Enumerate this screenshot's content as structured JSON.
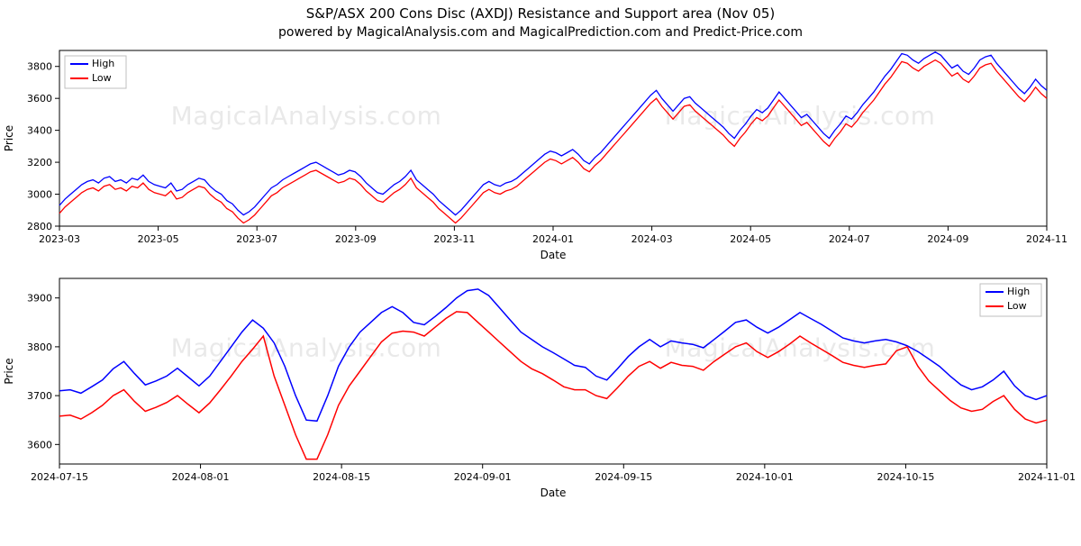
{
  "title": "S&P/ASX 200 Cons Disc (AXDJ) Resistance and Support area (Nov 05)",
  "subtitle": "powered by MagicalAnalysis.com and MagicalPrediction.com and Predict-Price.com",
  "watermark": "MagicalAnalysis.com",
  "chart1": {
    "type": "line",
    "xlabel": "Date",
    "ylabel": "Price",
    "ylim": [
      2800,
      3900
    ],
    "ytick_step": 200,
    "yticks": [
      2800,
      3000,
      3200,
      3400,
      3600,
      3800
    ],
    "xticks": [
      "2023-03",
      "2023-05",
      "2023-07",
      "2023-09",
      "2023-11",
      "2024-01",
      "2024-03",
      "2024-05",
      "2024-07",
      "2024-09",
      "2024-11"
    ],
    "legend_position": "upper-left",
    "legend": [
      {
        "label": "High",
        "color": "#0000ff"
      },
      {
        "label": "Low",
        "color": "#ff0000"
      }
    ],
    "line_width": 1.3,
    "background_color": "#ffffff",
    "border_color": "#000000",
    "grid": false,
    "series_high": [
      2930,
      2970,
      3000,
      3030,
      3060,
      3080,
      3090,
      3070,
      3100,
      3110,
      3080,
      3090,
      3070,
      3100,
      3090,
      3120,
      3080,
      3060,
      3050,
      3040,
      3070,
      3020,
      3030,
      3060,
      3080,
      3100,
      3090,
      3050,
      3020,
      3000,
      2960,
      2940,
      2900,
      2870,
      2890,
      2920,
      2960,
      3000,
      3040,
      3060,
      3090,
      3110,
      3130,
      3150,
      3170,
      3190,
      3200,
      3180,
      3160,
      3140,
      3120,
      3130,
      3150,
      3140,
      3110,
      3070,
      3040,
      3010,
      3000,
      3030,
      3060,
      3080,
      3110,
      3150,
      3090,
      3060,
      3030,
      3000,
      2960,
      2930,
      2900,
      2870,
      2900,
      2940,
      2980,
      3020,
      3060,
      3080,
      3060,
      3050,
      3070,
      3080,
      3100,
      3130,
      3160,
      3190,
      3220,
      3250,
      3270,
      3260,
      3240,
      3260,
      3280,
      3250,
      3210,
      3190,
      3230,
      3260,
      3300,
      3340,
      3380,
      3420,
      3460,
      3500,
      3540,
      3580,
      3620,
      3650,
      3600,
      3560,
      3520,
      3560,
      3600,
      3610,
      3570,
      3540,
      3510,
      3480,
      3450,
      3420,
      3380,
      3350,
      3400,
      3440,
      3490,
      3530,
      3510,
      3540,
      3590,
      3640,
      3600,
      3560,
      3520,
      3480,
      3500,
      3460,
      3420,
      3380,
      3350,
      3400,
      3440,
      3490,
      3470,
      3510,
      3560,
      3600,
      3640,
      3690,
      3740,
      3780,
      3830,
      3880,
      3870,
      3840,
      3820,
      3850,
      3870,
      3890,
      3870,
      3830,
      3790,
      3810,
      3770,
      3750,
      3790,
      3840,
      3860,
      3870,
      3820,
      3780,
      3740,
      3700,
      3660,
      3630,
      3670,
      3720,
      3680,
      3650
    ],
    "series_low": [
      2880,
      2920,
      2950,
      2980,
      3010,
      3030,
      3040,
      3020,
      3050,
      3060,
      3030,
      3040,
      3020,
      3050,
      3040,
      3070,
      3030,
      3010,
      3000,
      2990,
      3020,
      2970,
      2980,
      3010,
      3030,
      3050,
      3040,
      3000,
      2970,
      2950,
      2910,
      2890,
      2850,
      2820,
      2840,
      2870,
      2910,
      2950,
      2990,
      3010,
      3040,
      3060,
      3080,
      3100,
      3120,
      3140,
      3150,
      3130,
      3110,
      3090,
      3070,
      3080,
      3100,
      3090,
      3060,
      3020,
      2990,
      2960,
      2950,
      2980,
      3010,
      3030,
      3060,
      3100,
      3040,
      3010,
      2980,
      2950,
      2910,
      2880,
      2850,
      2820,
      2850,
      2890,
      2930,
      2970,
      3010,
      3030,
      3010,
      3000,
      3020,
      3030,
      3050,
      3080,
      3110,
      3140,
      3170,
      3200,
      3220,
      3210,
      3190,
      3210,
      3230,
      3200,
      3160,
      3140,
      3180,
      3210,
      3250,
      3290,
      3330,
      3370,
      3410,
      3450,
      3490,
      3530,
      3570,
      3600,
      3550,
      3510,
      3470,
      3510,
      3550,
      3560,
      3520,
      3490,
      3460,
      3430,
      3400,
      3370,
      3330,
      3300,
      3350,
      3390,
      3440,
      3480,
      3460,
      3490,
      3540,
      3590,
      3550,
      3510,
      3470,
      3430,
      3450,
      3410,
      3370,
      3330,
      3300,
      3350,
      3390,
      3440,
      3420,
      3460,
      3510,
      3550,
      3590,
      3640,
      3690,
      3730,
      3780,
      3830,
      3820,
      3790,
      3770,
      3800,
      3820,
      3840,
      3820,
      3780,
      3740,
      3760,
      3720,
      3700,
      3740,
      3790,
      3810,
      3820,
      3770,
      3730,
      3690,
      3650,
      3610,
      3580,
      3620,
      3670,
      3630,
      3600
    ]
  },
  "chart2": {
    "type": "line",
    "xlabel": "Date",
    "ylabel": "Price",
    "ylim": [
      3560,
      3940
    ],
    "ytick_step": 100,
    "yticks": [
      3600,
      3700,
      3800,
      3900
    ],
    "xticks": [
      "2024-07-15",
      "2024-08-01",
      "2024-08-15",
      "2024-09-01",
      "2024-09-15",
      "2024-10-01",
      "2024-10-15",
      "2024-11-01"
    ],
    "legend_position": "upper-right",
    "legend": [
      {
        "label": "High",
        "color": "#0000ff"
      },
      {
        "label": "Low",
        "color": "#ff0000"
      }
    ],
    "line_width": 1.5,
    "background_color": "#ffffff",
    "border_color": "#000000",
    "grid": false,
    "series_high": [
      3710,
      3712,
      3705,
      3718,
      3732,
      3755,
      3770,
      3745,
      3722,
      3730,
      3740,
      3756,
      3738,
      3720,
      3740,
      3770,
      3800,
      3830,
      3855,
      3838,
      3808,
      3760,
      3700,
      3650,
      3648,
      3700,
      3760,
      3800,
      3830,
      3850,
      3870,
      3882,
      3870,
      3850,
      3845,
      3862,
      3880,
      3900,
      3915,
      3918,
      3905,
      3880,
      3855,
      3830,
      3815,
      3800,
      3788,
      3775,
      3762,
      3758,
      3740,
      3732,
      3755,
      3780,
      3800,
      3815,
      3800,
      3812,
      3808,
      3805,
      3798,
      3815,
      3832,
      3850,
      3855,
      3840,
      3828,
      3840,
      3855,
      3870,
      3858,
      3846,
      3832,
      3818,
      3812,
      3808,
      3812,
      3815,
      3810,
      3802,
      3790,
      3775,
      3760,
      3740,
      3722,
      3712,
      3718,
      3732,
      3750,
      3720,
      3700,
      3692,
      3700
    ],
    "series_low": [
      3658,
      3660,
      3652,
      3665,
      3680,
      3700,
      3712,
      3688,
      3668,
      3676,
      3686,
      3700,
      3682,
      3665,
      3685,
      3712,
      3740,
      3770,
      3795,
      3822,
      3740,
      3680,
      3620,
      3570,
      3570,
      3620,
      3680,
      3720,
      3750,
      3780,
      3810,
      3828,
      3832,
      3830,
      3822,
      3840,
      3858,
      3872,
      3870,
      3850,
      3830,
      3810,
      3790,
      3770,
      3755,
      3745,
      3732,
      3718,
      3712,
      3712,
      3700,
      3694,
      3716,
      3740,
      3760,
      3770,
      3756,
      3768,
      3762,
      3760,
      3752,
      3770,
      3785,
      3800,
      3808,
      3790,
      3778,
      3790,
      3805,
      3822,
      3808,
      3795,
      3782,
      3768,
      3762,
      3758,
      3762,
      3765,
      3792,
      3800,
      3760,
      3730,
      3710,
      3690,
      3675,
      3668,
      3672,
      3688,
      3700,
      3672,
      3652,
      3644,
      3650
    ]
  }
}
